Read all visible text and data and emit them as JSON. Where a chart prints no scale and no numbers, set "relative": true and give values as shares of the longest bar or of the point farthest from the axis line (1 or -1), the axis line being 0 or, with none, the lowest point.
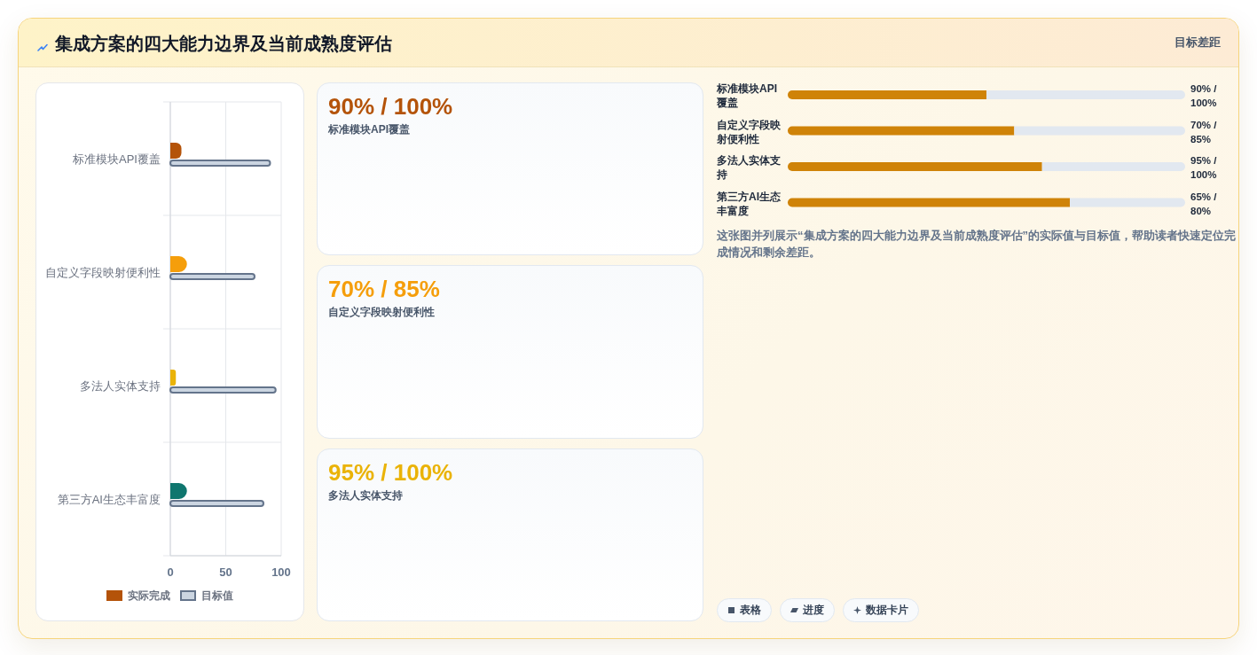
{
  "chart_data": [
    {
      "type": "bar",
      "orientation": "horizontal",
      "title": "集成方案的四大能力边界及当前成熟度评估",
      "categories": [
        "标准模块API覆盖",
        "自定义字段映射便利性",
        "多法人实体支持",
        "第三方AI生态丰富度"
      ],
      "series": [
        {
          "name": "实际完成",
          "color": "#b45309",
          "colors": [
            "#b45309",
            "#f59e0b",
            "#eab308",
            "#0f766e"
          ],
          "values": [
            10,
            15,
            5,
            15
          ]
        },
        {
          "name": "目标值",
          "color": "#cbd5e1",
          "values": [
            90,
            76,
            95,
            84
          ]
        }
      ],
      "xlim": [
        0,
        100
      ],
      "xticks": [
        0,
        50,
        100
      ],
      "grid": true,
      "legend": "bottom"
    },
    {
      "type": "other",
      "categories": [
        "标准模块API覆盖",
        "自定义字段映射便利性",
        "多法人实体支持"
      ],
      "value_labels": [
        "90% / 100%",
        "70% / 85%",
        "95% / 100%"
      ]
    },
    {
      "type": "bar",
      "orientation": "horizontal",
      "relative": true,
      "stacked": true,
      "title": "目标差距",
      "categories": [
        "标准模块API覆盖",
        "自定义字段映射便利性",
        "多法人实体支持",
        "第三方AI生态丰富度"
      ],
      "series": [
        {
          "color": "#cf8308",
          "values": [
            0.5,
            0.57,
            0.64,
            0.71
          ]
        },
        {
          "color": "#e2e8f0",
          "values": [
            0.5,
            0.43,
            0.36,
            0.29
          ]
        }
      ],
      "annotations": [
        "90% / 100%",
        "70% / 85%",
        "95% / 100%",
        "65% / 80%",
        "这张图并列展示“集成方案的四大能力边界及当前成熟度评估”的实际值与目标值，帮助读者快速定位完成情况和剩余差距。"
      ]
    },
    {
      "type": "other",
      "annotations": [
        "表格",
        "进度",
        "数据卡片"
      ]
    }
  ]
}
